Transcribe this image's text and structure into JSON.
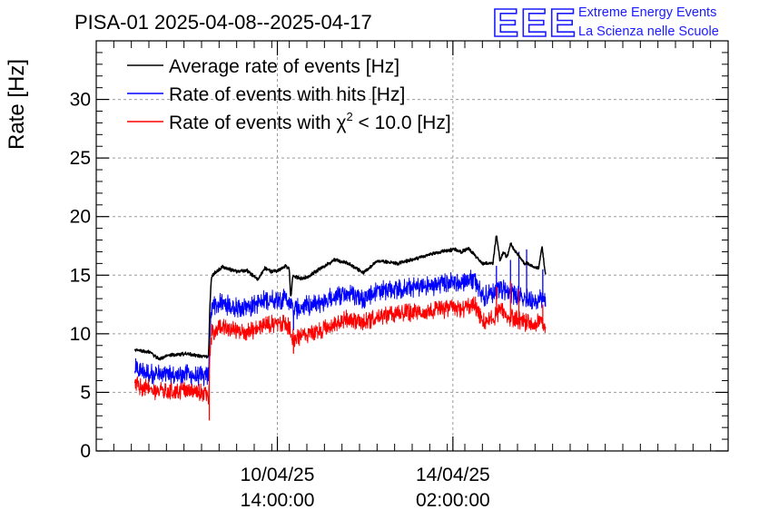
{
  "chart_data": {
    "type": "line",
    "title": "PISA-01 2025-04-08--2025-04-17",
    "ylabel": "Rate [Hz]",
    "xlabel": "",
    "ylim": [
      0,
      35
    ],
    "xlim_days": [
      0,
      9
    ],
    "y_ticks": [
      0,
      5,
      10,
      15,
      20,
      25,
      30
    ],
    "x_ticks": [
      {
        "day": 2.58,
        "label_date": "10/04/25",
        "label_time": "14:00:00"
      },
      {
        "day": 5.08,
        "label_date": "14/04/25",
        "label_time": "02:00:00"
      }
    ],
    "grid": true,
    "legend_position": "top-left",
    "series": [
      {
        "name": "Average rate of events [Hz]",
        "color": "#000000",
        "x": [
          0.55,
          0.75,
          0.9,
          1.05,
          1.3,
          1.55,
          1.6,
          1.62,
          1.64,
          1.65,
          1.8,
          2.0,
          2.15,
          2.3,
          2.4,
          2.5,
          2.6,
          2.7,
          2.75,
          2.77,
          2.8,
          2.9,
          3.0,
          3.2,
          3.4,
          3.6,
          3.8,
          4.0,
          4.3,
          4.6,
          4.9,
          5.1,
          5.2,
          5.3,
          5.5,
          5.65,
          5.7,
          5.75,
          5.8,
          5.85,
          5.9,
          6.0,
          6.1,
          6.15,
          6.2,
          6.3,
          6.35,
          6.4
        ],
        "values": [
          8.6,
          8.5,
          7.8,
          8.2,
          8.3,
          8.0,
          8.1,
          12.5,
          14.8,
          15.0,
          15.7,
          15.3,
          15.4,
          14.6,
          15.6,
          15.3,
          15.4,
          15.8,
          15.5,
          13.0,
          15.0,
          14.7,
          14.8,
          15.6,
          16.3,
          16.0,
          15.2,
          16.2,
          16.0,
          16.5,
          17.0,
          17.2,
          17.0,
          17.3,
          16.0,
          16.0,
          18.5,
          16.2,
          17.0,
          16.5,
          17.7,
          16.8,
          16.0,
          16.0,
          15.8,
          15.6,
          17.4,
          15.0
        ],
        "noise": 0.15
      },
      {
        "name": "Rate of events with hits [Hz]",
        "color": "#0000ff",
        "x": [
          0.55,
          0.8,
          1.0,
          1.3,
          1.55,
          1.6,
          1.62,
          1.64,
          1.65,
          1.8,
          2.0,
          2.2,
          2.4,
          2.6,
          2.75,
          2.8,
          3.0,
          3.2,
          3.4,
          3.6,
          3.8,
          4.0,
          4.3,
          4.6,
          4.9,
          5.1,
          5.2,
          5.3,
          5.4,
          5.5,
          5.65,
          5.75,
          5.85,
          6.0,
          6.2,
          6.35,
          6.4
        ],
        "values": [
          7.0,
          6.6,
          6.4,
          6.5,
          6.3,
          6.4,
          10.0,
          12.0,
          12.4,
          12.6,
          12.2,
          12.3,
          12.9,
          13.0,
          12.9,
          12.0,
          12.4,
          12.6,
          13.3,
          13.4,
          13.0,
          13.7,
          13.8,
          14.0,
          14.2,
          14.5,
          14.3,
          14.6,
          14.6,
          13.2,
          13.5,
          14.0,
          13.6,
          13.2,
          12.9,
          13.1,
          12.6
        ],
        "noise": 0.9,
        "spikes": [
          [
            2.81,
            10.3
          ],
          [
            5.7,
            15.8
          ],
          [
            5.9,
            16.3
          ],
          [
            6.02,
            17.0
          ],
          [
            6.13,
            17.2
          ],
          [
            6.36,
            15.5
          ]
        ]
      },
      {
        "name": "Rate of events with χ² < 10.0 [Hz]",
        "label_plain": "Rate of events with ",
        "label_chi": "χ",
        "label_sup": "2",
        "label_rest": " < 10.0 [Hz]",
        "color": "#ff0000",
        "x": [
          0.55,
          0.8,
          1.0,
          1.3,
          1.55,
          1.6,
          1.62,
          1.64,
          1.65,
          1.8,
          2.0,
          2.2,
          2.4,
          2.6,
          2.75,
          2.8,
          3.0,
          3.2,
          3.4,
          3.6,
          3.8,
          4.0,
          4.3,
          4.6,
          4.9,
          5.1,
          5.2,
          5.3,
          5.4,
          5.5,
          5.65,
          5.75,
          5.85,
          6.0,
          6.2,
          6.35,
          6.4
        ],
        "values": [
          5.6,
          5.2,
          5.0,
          5.2,
          4.9,
          4.5,
          8.5,
          9.7,
          10.2,
          10.5,
          10.3,
          10.2,
          10.8,
          10.9,
          10.7,
          9.6,
          10.0,
          10.2,
          11.0,
          11.3,
          11.0,
          11.4,
          11.7,
          11.9,
          12.0,
          12.2,
          12.0,
          12.4,
          12.4,
          11.0,
          11.3,
          12.0,
          11.5,
          11.2,
          10.8,
          11.0,
          10.4
        ],
        "noise": 0.8,
        "spikes": [
          [
            1.61,
            2.6
          ],
          [
            2.81,
            8.3
          ],
          [
            5.7,
            14.0
          ],
          [
            5.9,
            14.5
          ],
          [
            6.02,
            13.8
          ],
          [
            6.36,
            12.5
          ]
        ]
      }
    ]
  },
  "logo": {
    "letters": "EEE",
    "line1": "Extreme Energy Events",
    "line2": "La Scienza nelle Scuole"
  }
}
